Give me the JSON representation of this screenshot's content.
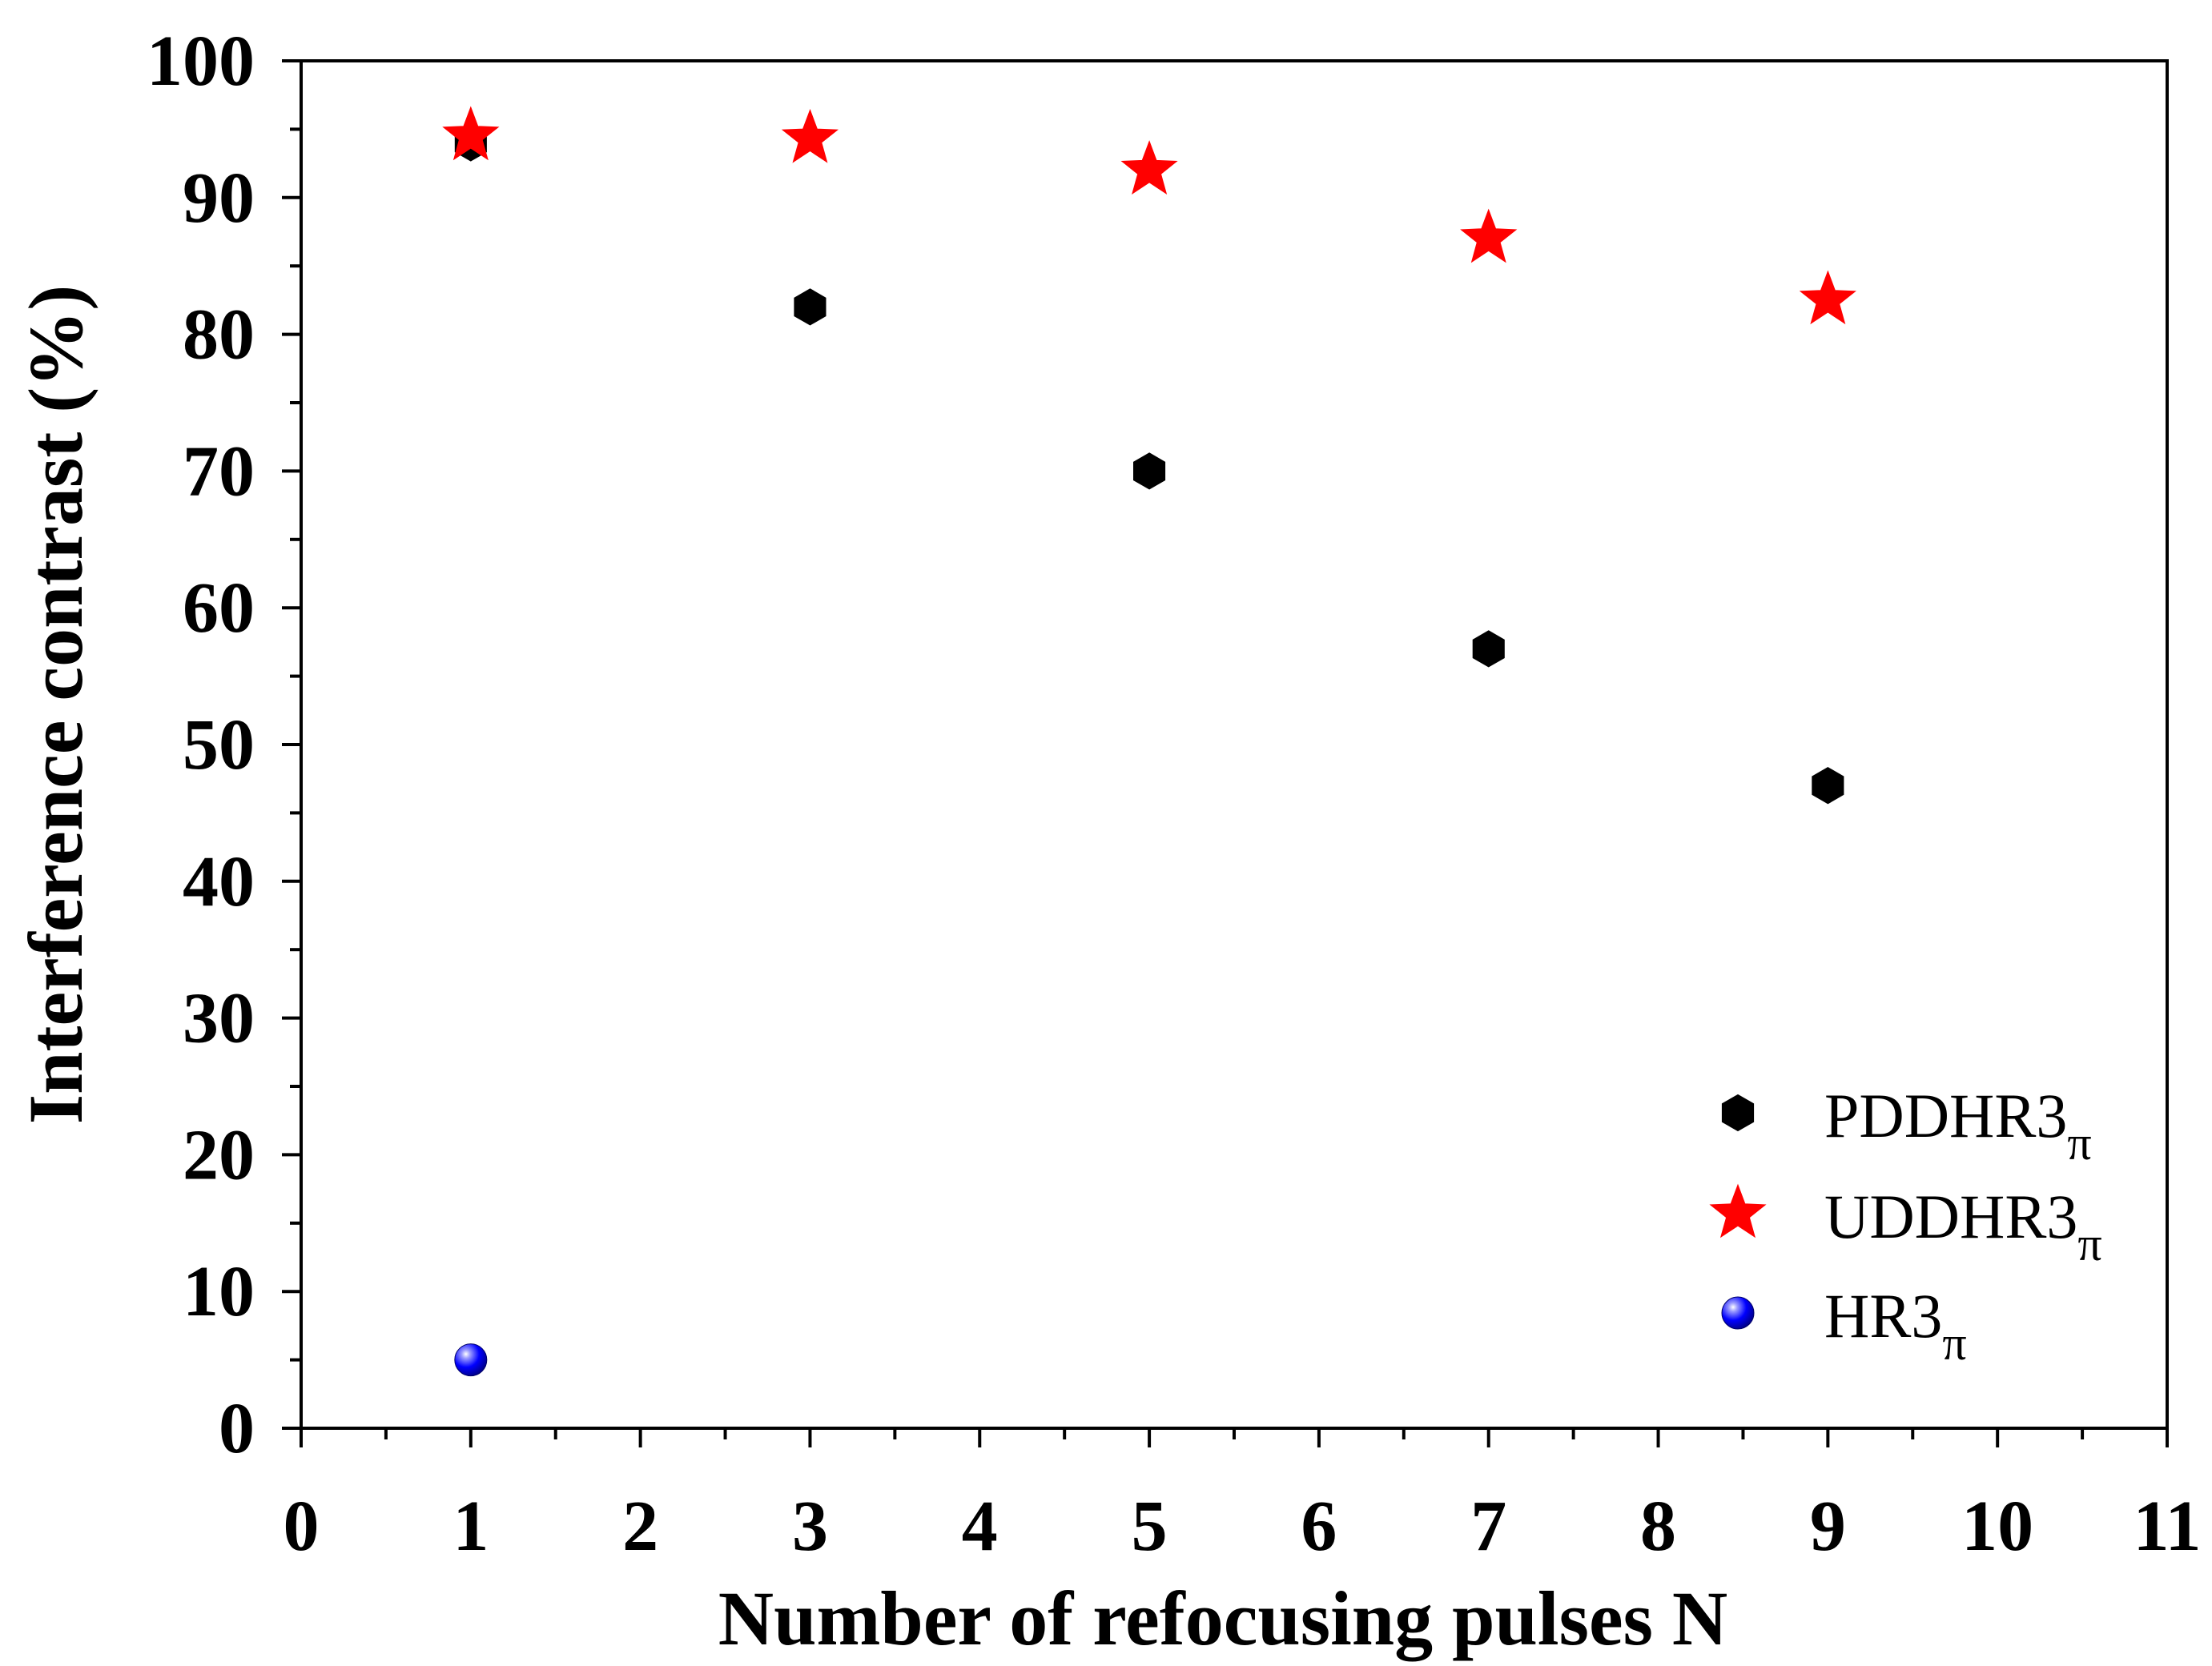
{
  "chart_data": {
    "type": "scatter",
    "title": "",
    "xlabel": "Number of refocusing pulses N",
    "ylabel": "Interference contrast (%)",
    "xlim": [
      0,
      11
    ],
    "ylim": [
      0,
      100
    ],
    "xticks": [
      0,
      1,
      2,
      3,
      4,
      5,
      6,
      7,
      8,
      9,
      10,
      11
    ],
    "yticks": [
      0,
      10,
      20,
      30,
      40,
      50,
      60,
      70,
      80,
      90,
      100
    ],
    "legend_position": "bottom-right",
    "grid": false,
    "series": [
      {
        "name": "PDDHR3",
        "subscript": "π",
        "marker": "hexagon",
        "color": "#000000",
        "points": [
          {
            "x": 1,
            "y": 94
          },
          {
            "x": 3,
            "y": 82
          },
          {
            "x": 5,
            "y": 70
          },
          {
            "x": 7,
            "y": 57
          },
          {
            "x": 9,
            "y": 47
          }
        ]
      },
      {
        "name": "UDDHR3",
        "subscript": "π",
        "marker": "star",
        "color": "#ff0000",
        "points": [
          {
            "x": 1,
            "y": 94.5
          },
          {
            "x": 3,
            "y": 94.3
          },
          {
            "x": 5,
            "y": 92
          },
          {
            "x": 7,
            "y": 87
          },
          {
            "x": 9,
            "y": 82.5
          }
        ]
      },
      {
        "name": "HR3",
        "subscript": "π",
        "marker": "sphere",
        "color": "#0000ff",
        "points": [
          {
            "x": 1,
            "y": 5
          }
        ]
      }
    ]
  }
}
